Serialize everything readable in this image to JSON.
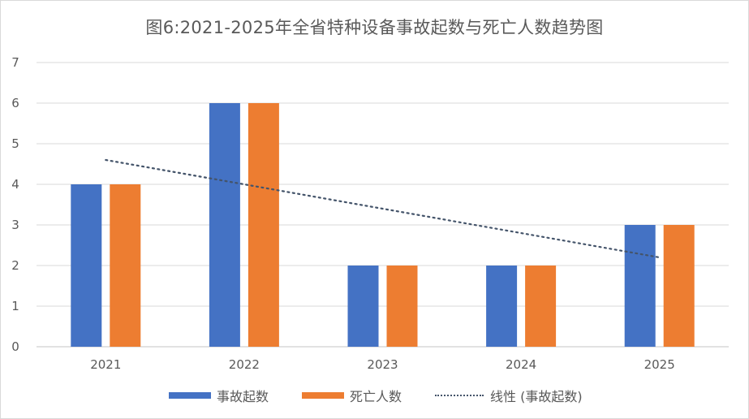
{
  "chart_title": "图6:2021-2025年全省特种设备事故起数与死亡人数趋势图",
  "colors": {
    "accidents": "#4472c4",
    "deaths": "#ed7d31",
    "trendline": "#44546a",
    "gridline": "#d9d9d9",
    "text": "#595959"
  },
  "legend": {
    "items": [
      {
        "label": "事故起数",
        "type": "bar"
      },
      {
        "label": "死亡人数",
        "type": "bar"
      },
      {
        "label": "线性 (事故起数)",
        "type": "dotted-line"
      }
    ]
  },
  "chart_data": {
    "type": "bar",
    "title": "图6:2021-2025年全省特种设备事故起数与死亡人数趋势图",
    "xlabel": "",
    "ylabel": "",
    "categories": [
      "2021",
      "2022",
      "2023",
      "2024",
      "2025"
    ],
    "series": [
      {
        "name": "事故起数",
        "values": [
          4,
          6,
          2,
          2,
          3
        ],
        "color": "#4472c4"
      },
      {
        "name": "死亡人数",
        "values": [
          4,
          6,
          2,
          2,
          3
        ],
        "color": "#ed7d31"
      }
    ],
    "trendline": {
      "name": "线性 (事故起数)",
      "type": "linear",
      "of_series": "事故起数",
      "values": [
        4.6,
        4.0,
        3.4,
        2.8,
        2.2
      ]
    },
    "ylim": [
      0,
      7
    ],
    "yticks": [
      0,
      1,
      2,
      3,
      4,
      5,
      6,
      7
    ],
    "grid": true,
    "legend_position": "bottom"
  }
}
